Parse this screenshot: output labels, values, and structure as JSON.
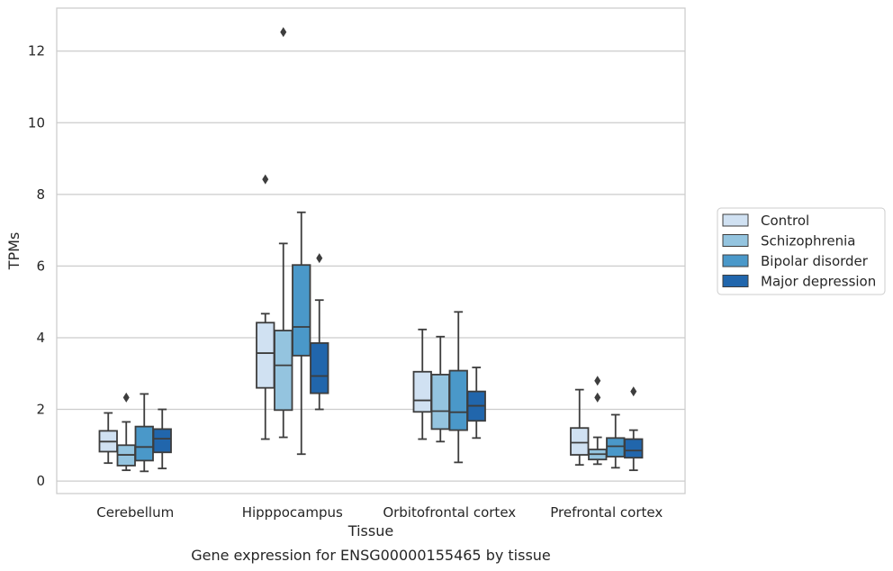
{
  "chart_data": {
    "type": "box",
    "xlabel": "Tissue",
    "ylabel": "TPMs",
    "caption": "Gene expression for ENSG00000155465 by tissue",
    "ylim": [
      -0.35,
      13.2
    ],
    "yticks": [
      0,
      2,
      4,
      6,
      8,
      10,
      12
    ],
    "grid": true,
    "legend_position": "right",
    "categories": [
      "Cerebellum",
      "Hipppocampus",
      "Orbitofrontal cortex",
      "Prefrontal cortex"
    ],
    "series": [
      {
        "name": "Control",
        "color": "#d0e1f2",
        "boxes": [
          {
            "whisker_low": 0.5,
            "q1": 0.82,
            "median": 1.1,
            "q3": 1.4,
            "whisker_high": 1.9,
            "outliers": []
          },
          {
            "whisker_low": 1.17,
            "q1": 2.6,
            "median": 3.57,
            "q3": 4.42,
            "whisker_high": 4.67,
            "outliers": [
              8.42
            ]
          },
          {
            "whisker_low": 1.17,
            "q1": 1.93,
            "median": 2.25,
            "q3": 3.05,
            "whisker_high": 4.23,
            "outliers": []
          },
          {
            "whisker_low": 0.45,
            "q1": 0.73,
            "median": 1.07,
            "q3": 1.48,
            "whisker_high": 2.55,
            "outliers": []
          }
        ]
      },
      {
        "name": "Schizophrenia",
        "color": "#94c4df",
        "boxes": [
          {
            "whisker_low": 0.3,
            "q1": 0.43,
            "median": 0.73,
            "q3": 1.0,
            "whisker_high": 1.65,
            "outliers": [
              2.33
            ]
          },
          {
            "whisker_low": 1.22,
            "q1": 1.98,
            "median": 3.23,
            "q3": 4.2,
            "whisker_high": 6.63,
            "outliers": [
              12.53
            ]
          },
          {
            "whisker_low": 1.1,
            "q1": 1.45,
            "median": 1.95,
            "q3": 2.97,
            "whisker_high": 4.03,
            "outliers": []
          },
          {
            "whisker_low": 0.47,
            "q1": 0.6,
            "median": 0.75,
            "q3": 0.88,
            "whisker_high": 1.22,
            "outliers": [
              2.33,
              2.8
            ]
          }
        ]
      },
      {
        "name": "Bipolar disorder",
        "color": "#4a98c9",
        "boxes": [
          {
            "whisker_low": 0.27,
            "q1": 0.57,
            "median": 0.95,
            "q3": 1.52,
            "whisker_high": 2.43,
            "outliers": []
          },
          {
            "whisker_low": 0.75,
            "q1": 3.5,
            "median": 4.3,
            "q3": 6.03,
            "whisker_high": 7.5,
            "outliers": []
          },
          {
            "whisker_low": 0.52,
            "q1": 1.42,
            "median": 1.92,
            "q3": 3.08,
            "whisker_high": 4.72,
            "outliers": []
          },
          {
            "whisker_low": 0.37,
            "q1": 0.68,
            "median": 0.97,
            "q3": 1.2,
            "whisker_high": 1.85,
            "outliers": []
          }
        ]
      },
      {
        "name": "Major depression",
        "color": "#2166ac",
        "boxes": [
          {
            "whisker_low": 0.35,
            "q1": 0.8,
            "median": 1.18,
            "q3": 1.45,
            "whisker_high": 2.0,
            "outliers": []
          },
          {
            "whisker_low": 2.0,
            "q1": 2.45,
            "median": 2.93,
            "q3": 3.85,
            "whisker_high": 5.05,
            "outliers": [
              6.22
            ]
          },
          {
            "whisker_low": 1.2,
            "q1": 1.68,
            "median": 2.1,
            "q3": 2.5,
            "whisker_high": 3.17,
            "outliers": []
          },
          {
            "whisker_low": 0.3,
            "q1": 0.65,
            "median": 0.85,
            "q3": 1.17,
            "whisker_high": 1.42,
            "outliers": [
              2.5
            ]
          }
        ]
      }
    ]
  }
}
